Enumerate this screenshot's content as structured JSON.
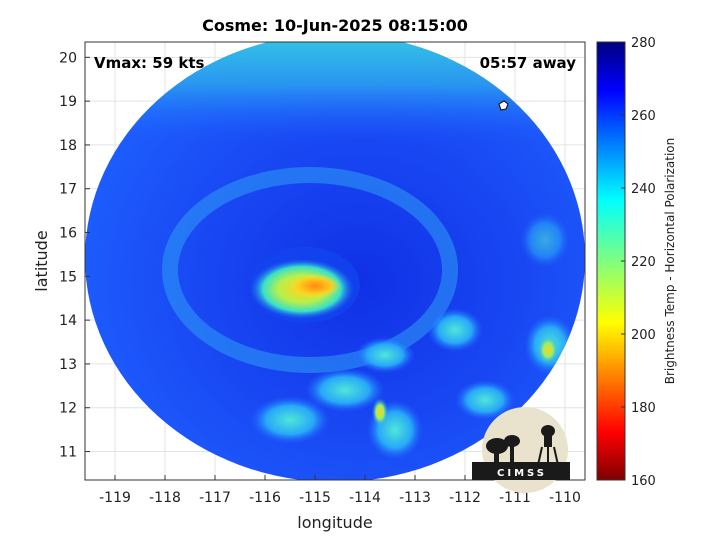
{
  "chart_data": {
    "type": "heatmap",
    "title": "Cosme: 10-Jun-2025 08:15:00",
    "xlabel": "longitude",
    "ylabel": "latitude",
    "xlim": [
      -119.6,
      -109.6
    ],
    "ylim": [
      10.35,
      20.35
    ],
    "x_ticks": [
      -119,
      -118,
      -117,
      -116,
      -115,
      -114,
      -113,
      -112,
      -111,
      -110
    ],
    "x_tick_labels": [
      "-119",
      "-118",
      "-117",
      "-116",
      "-115",
      "-114",
      "-113",
      "-112",
      "-111",
      "-110"
    ],
    "y_ticks": [
      11,
      12,
      13,
      14,
      15,
      16,
      17,
      18,
      19,
      20
    ],
    "y_tick_labels": [
      "11",
      "12",
      "13",
      "14",
      "15",
      "16",
      "17",
      "18",
      "19",
      "20"
    ],
    "grid": true,
    "colorbar": {
      "label": "Brightness Temp - Horizontal Polarization",
      "min": 160,
      "max": 280,
      "ticks": [
        160,
        180,
        200,
        220,
        240,
        260,
        280
      ],
      "tick_labels": [
        "160",
        "180",
        "200",
        "220",
        "240",
        "260",
        "280"
      ],
      "colormap": "jet"
    },
    "annotations": {
      "vmax": "Vmax: 59 kts",
      "time_away": "05:57 away"
    },
    "storm_center": {
      "lon": -114.5,
      "lat": 14.8
    },
    "coldest_region_value": 195,
    "background_value": 258
  },
  "logo": {
    "text": "CIMSS"
  }
}
